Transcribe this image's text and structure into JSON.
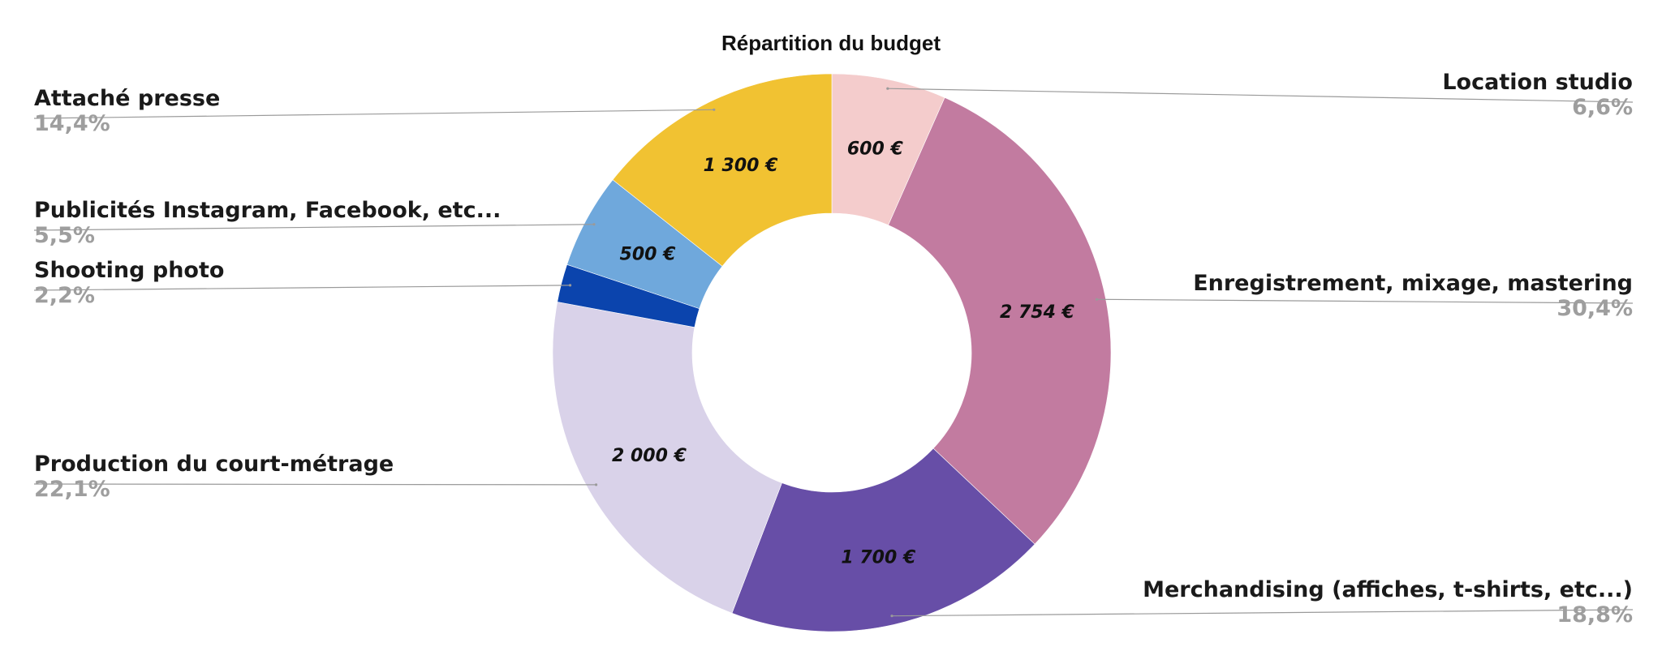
{
  "chart_data": {
    "type": "pie",
    "subtype": "donut",
    "title": "Répartition du budget",
    "legend": "none",
    "slices": [
      {
        "label": "Location studio",
        "value": 600,
        "value_label": "600 €",
        "percent_label": "6,6%",
        "color": "#F4CCCC",
        "side": "right"
      },
      {
        "label": "Enregistrement, mixage, mastering",
        "value": 2754,
        "value_label": "2 754 €",
        "percent_label": "30,4%",
        "color": "#C27BA0",
        "side": "right"
      },
      {
        "label": "Merchandising (affiches, t-shirts, etc...)",
        "value": 1700,
        "value_label": "1 700 €",
        "percent_label": "18,8%",
        "color": "#674EA7",
        "side": "right"
      },
      {
        "label": "Production du court-métrage",
        "value": 2000,
        "value_label": "2 000 €",
        "percent_label": "22,1%",
        "color": "#D9D2E9",
        "side": "left"
      },
      {
        "label": "Shooting photo",
        "value": 200,
        "value_label": "",
        "percent_label": "2,2%",
        "color": "#0B44AD",
        "side": "left"
      },
      {
        "label": "Publicités Instagram, Facebook, etc...",
        "value": 500,
        "value_label": "500 €",
        "percent_label": "5,5%",
        "color": "#6FA8DC",
        "side": "left"
      },
      {
        "label": "Attaché presse",
        "value": 1300,
        "value_label": "1 300 €",
        "percent_label": "14,4%",
        "color": "#F1C232",
        "side": "left"
      }
    ]
  }
}
